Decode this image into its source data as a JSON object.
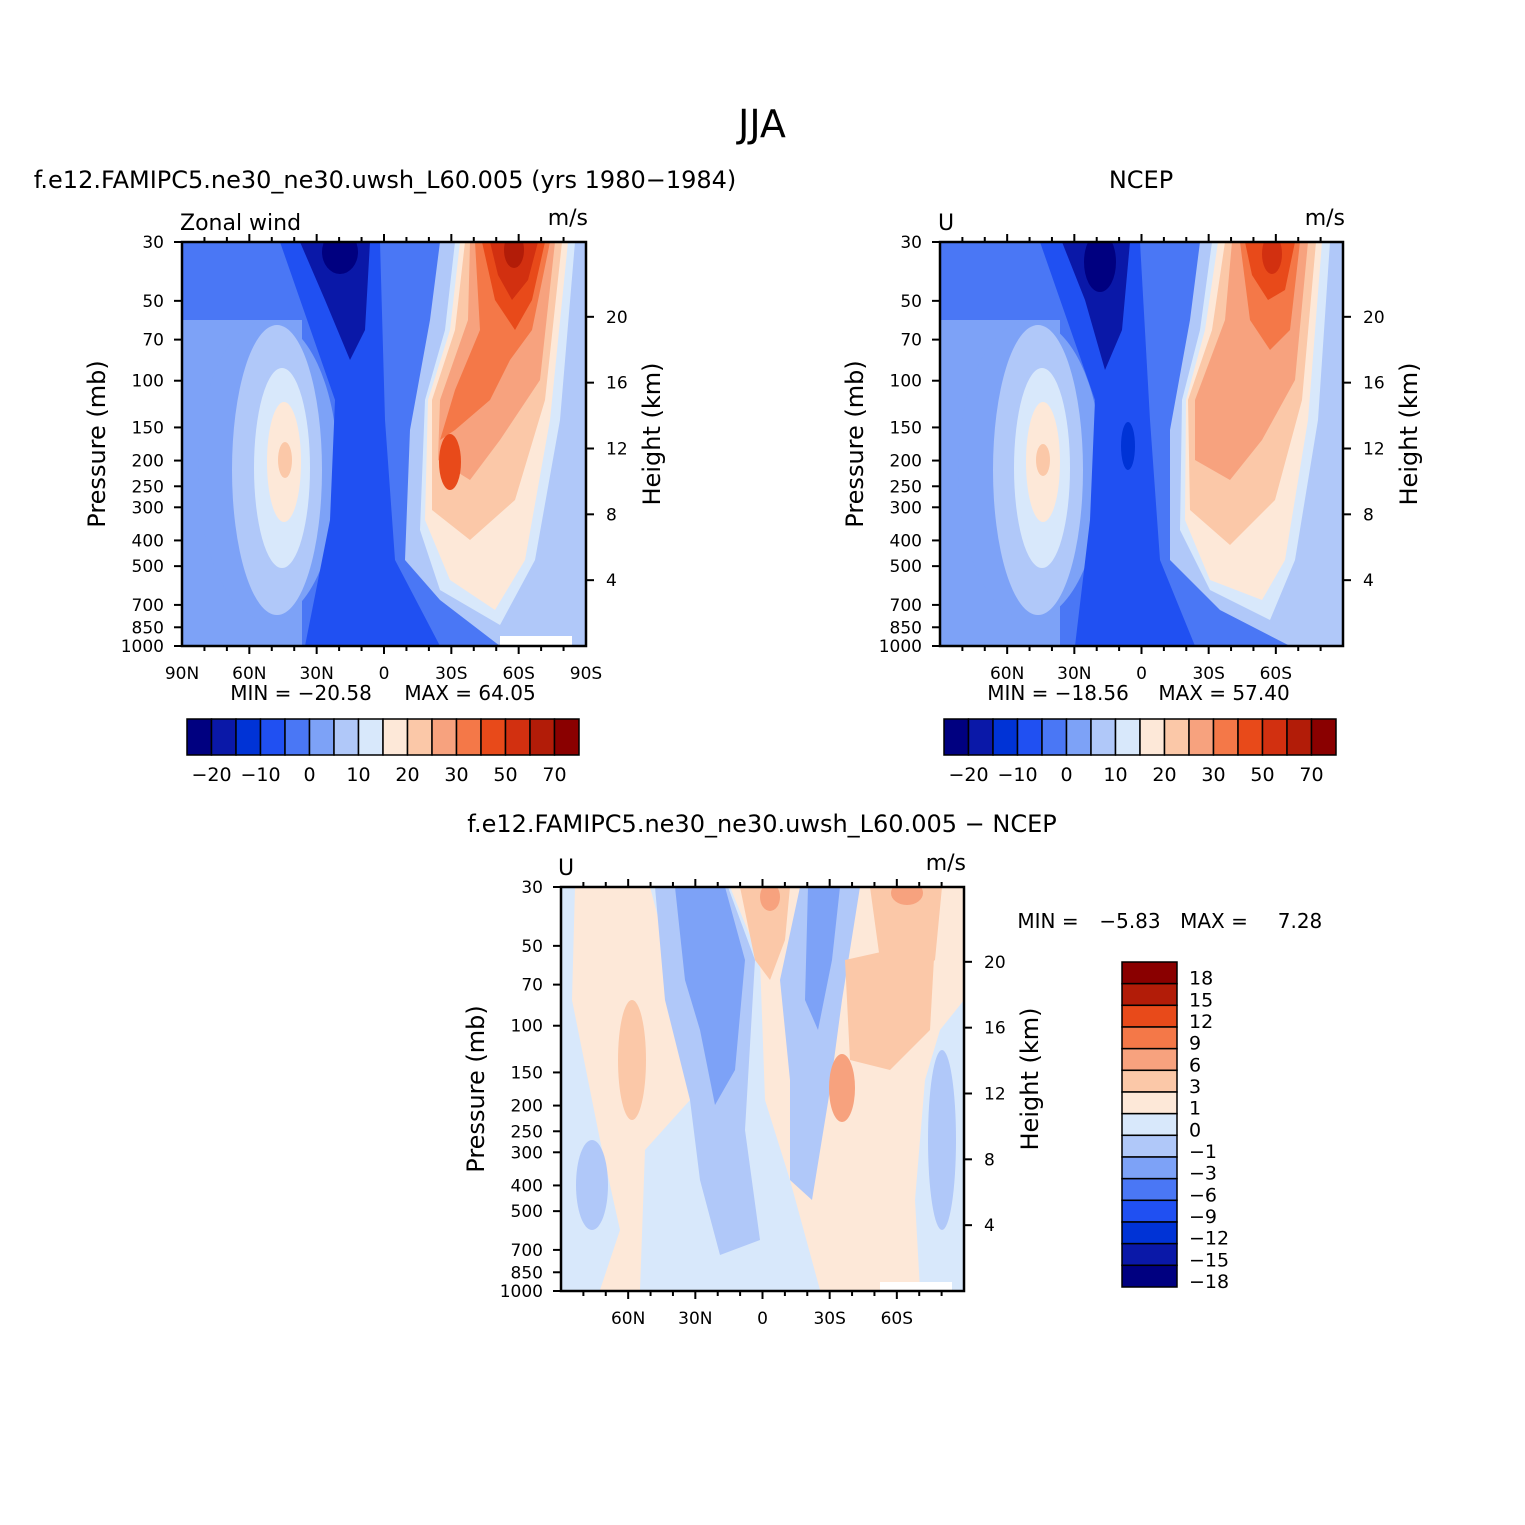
{
  "figure": {
    "title": "JJA"
  },
  "colors": {
    "panel_levels": [
      "#000080",
      "#0a18a8",
      "#0033d6",
      "#2050f2",
      "#4a77f5",
      "#7da2f7",
      "#b0c8f9",
      "#d8e8fb",
      "#fde8d8",
      "#fbc8a8",
      "#f7a27e",
      "#f47848",
      "#e84a1a",
      "#d23010",
      "#b21c08",
      "#8a0000"
    ],
    "diff_levels": [
      "#000080",
      "#0a18a8",
      "#0033d6",
      "#2050f2",
      "#4a77f5",
      "#7da2f7",
      "#b0c8f9",
      "#d8e8fb",
      "#fde8d8",
      "#fbc8a8",
      "#f7a27e",
      "#f47848",
      "#e84a1a",
      "#b21c08",
      "#8a0000"
    ]
  },
  "chart_data": [
    {
      "type": "contour",
      "title": "f.e12.FAMIPC5.ne30_ne30.uwsh_L60.005 (yrs 1980−1984)",
      "left_string": "Zonal wind",
      "right_string": "m/s",
      "xlabel": "",
      "ylabel": "Pressure (mb)",
      "y2label": "Height (km)",
      "x_ticks": [
        "90N",
        "60N",
        "30N",
        "0",
        "30S",
        "60S",
        "90S"
      ],
      "y_ticks": [
        "30",
        "50",
        "70",
        "100",
        "150",
        "200",
        "250",
        "300",
        "400",
        "500",
        "700",
        "850",
        "1000"
      ],
      "y2_ticks": [
        "20",
        "16",
        "12",
        "8",
        "4"
      ],
      "min_label": "MIN = −20.58",
      "max_label": "MAX = 64.05",
      "min": -20.58,
      "max": 64.05,
      "colorbar_labels": [
        "−20",
        "−10",
        "0",
        "10",
        "20",
        "30",
        "50",
        "70"
      ],
      "features": [
        {
          "kind": "easterly jet core",
          "lat": 15,
          "pressure": 30,
          "value": -20
        },
        {
          "kind": "westerly jet (subtropical)",
          "lat": -30,
          "pressure": 200,
          "value": 40
        },
        {
          "kind": "polar night jet",
          "lat": -60,
          "pressure": 30,
          "value": 64
        },
        {
          "kind": "NH subtropical jet",
          "lat": 40,
          "pressure": 200,
          "value": 20
        }
      ]
    },
    {
      "type": "contour",
      "title": "NCEP",
      "left_string": "U",
      "right_string": "m/s",
      "xlabel": "",
      "ylabel": "Pressure (mb)",
      "y2label": "Height (km)",
      "x_ticks": [
        "60N",
        "30N",
        "0",
        "30S",
        "60S"
      ],
      "y_ticks": [
        "30",
        "50",
        "70",
        "100",
        "150",
        "200",
        "250",
        "300",
        "400",
        "500",
        "700",
        "850",
        "1000"
      ],
      "y2_ticks": [
        "20",
        "16",
        "12",
        "8",
        "4"
      ],
      "min_label": "MIN = −18.56",
      "max_label": "MAX = 57.40",
      "min": -18.56,
      "max": 57.4,
      "colorbar_labels": [
        "−20",
        "−10",
        "0",
        "10",
        "20",
        "30",
        "50",
        "70"
      ],
      "features": [
        {
          "kind": "easterly jet core",
          "lat": 12,
          "pressure": 30,
          "value": -18
        },
        {
          "kind": "westerly jet (subtropical)",
          "lat": -30,
          "pressure": 200,
          "value": 38
        },
        {
          "kind": "polar night jet",
          "lat": -60,
          "pressure": 30,
          "value": 57
        },
        {
          "kind": "NH subtropical jet",
          "lat": 40,
          "pressure": 200,
          "value": 18
        }
      ]
    },
    {
      "type": "contour",
      "title": "f.e12.FAMIPC5.ne30_ne30.uwsh_L60.005 − NCEP",
      "left_string": "U",
      "right_string": "m/s",
      "xlabel": "",
      "ylabel": "Pressure (mb)",
      "y2label": "Height (km)",
      "x_ticks": [
        "60N",
        "30N",
        "0",
        "30S",
        "60S"
      ],
      "y_ticks": [
        "30",
        "50",
        "70",
        "100",
        "150",
        "200",
        "250",
        "300",
        "400",
        "500",
        "700",
        "850",
        "1000"
      ],
      "y2_ticks": [
        "20",
        "16",
        "12",
        "8",
        "4"
      ],
      "min_label": "MIN =",
      "min_value": "−5.83",
      "max_label": "MAX =",
      "max_value": "7.28",
      "min": -5.83,
      "max": 7.28,
      "colorbar_labels": [
        "18",
        "15",
        "12",
        "9",
        "6",
        "3",
        "1",
        "0",
        "−1",
        "−3",
        "−6",
        "−9",
        "−12",
        "−15",
        "−18"
      ]
    }
  ]
}
